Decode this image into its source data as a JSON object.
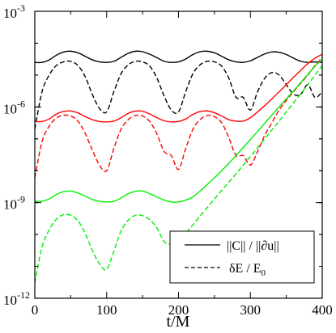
{
  "chart_data": {
    "type": "line",
    "xlabel": "t/M",
    "ylabel": "",
    "xlim": [
      0,
      400
    ],
    "ylim": [
      1e-12,
      0.001
    ],
    "yscale": "log",
    "x_ticks": [
      0,
      100,
      200,
      300,
      400
    ],
    "x_tick_labels": [
      "0",
      "100",
      "200",
      "300",
      "400"
    ],
    "y_ticks": [
      1e-12,
      1e-09,
      1e-06,
      0.001
    ],
    "y_tick_labels": [
      {
        "base": "10",
        "exp": "-12"
      },
      {
        "base": "10",
        "exp": "-9"
      },
      {
        "base": "10",
        "exp": "-6"
      },
      {
        "base": "10",
        "exp": "-3"
      }
    ],
    "grid": false,
    "legend_position": "bottom-right",
    "legend": [
      {
        "style": "solid",
        "label": "||C|| / ||∂u||"
      },
      {
        "style": "dashed",
        "label": "δE / E",
        "subscript": "0"
      }
    ],
    "series": [
      {
        "color": "#000000",
        "style": "solid",
        "x": [
          0,
          10,
          20,
          30,
          40,
          50,
          60,
          70,
          80,
          90,
          100,
          110,
          120,
          130,
          140,
          150,
          160,
          170,
          180,
          190,
          200,
          210,
          220,
          230,
          240,
          250,
          260,
          270,
          280,
          290,
          300,
          310,
          320,
          330,
          340,
          350,
          360,
          370,
          380,
          390,
          400
        ],
        "y": [
          2.5e-05,
          2.5e-05,
          3e-05,
          4.2e-05,
          5.3e-05,
          5.6e-05,
          5e-05,
          3.9e-05,
          3e-05,
          2.6e-05,
          2.5e-05,
          2.7e-05,
          3.6e-05,
          4.8e-05,
          5.6e-05,
          5.4e-05,
          4.5e-05,
          3.5e-05,
          2.7e-05,
          2.5e-05,
          2.6e-05,
          3.2e-05,
          4.4e-05,
          5.4e-05,
          5.6e-05,
          5e-05,
          3.9e-05,
          3e-05,
          2.6e-05,
          2.5e-05,
          2.8e-05,
          3.6e-05,
          4.6e-05,
          5.3e-05,
          5.2e-05,
          4.4e-05,
          3.4e-05,
          2.7e-05,
          2.5e-05,
          2.6e-05,
          2.5e-05
        ]
      },
      {
        "color": "#000000",
        "style": "dashed",
        "x": [
          0,
          10,
          20,
          30,
          40,
          50,
          60,
          70,
          80,
          90,
          100,
          110,
          120,
          130,
          140,
          150,
          160,
          170,
          180,
          190,
          200,
          210,
          220,
          230,
          240,
          250,
          260,
          270,
          280,
          290,
          300,
          310,
          320,
          330,
          340,
          350,
          360,
          370,
          380,
          390,
          400
        ],
        "y": [
          2e-07,
          3e-06,
          1e-05,
          2e-05,
          2.6e-05,
          2.7e-05,
          2e-05,
          9e-06,
          2.5e-06,
          9e-07,
          7e-07,
          3e-06,
          1.1e-05,
          2.1e-05,
          2.7e-05,
          2.6e-05,
          1.9e-05,
          8e-06,
          2.2e-06,
          8e-07,
          7e-07,
          3e-06,
          1.1e-05,
          2.1e-05,
          2.7e-05,
          2.6e-05,
          1.9e-05,
          8e-06,
          2e-06,
          2e-06,
          8e-07,
          3e-06,
          8e-06,
          1.2e-05,
          1e-05,
          5e-06,
          2.5e-06,
          2.5e-06,
          5e-06,
          2e-06,
          3e-06
        ]
      },
      {
        "color": "#ff0000",
        "style": "solid",
        "x": [
          0,
          10,
          20,
          30,
          40,
          50,
          60,
          70,
          80,
          90,
          100,
          110,
          120,
          130,
          140,
          150,
          160,
          170,
          180,
          190,
          200,
          210,
          220,
          230,
          240,
          250,
          260,
          270,
          280,
          290,
          300,
          310,
          320,
          330,
          340,
          350,
          360,
          370,
          380,
          390,
          400
        ],
        "y": [
          3.5e-07,
          3.5e-07,
          4.2e-07,
          6e-07,
          7.2e-07,
          7.5e-07,
          6.5e-07,
          5e-07,
          4e-07,
          3.5e-07,
          3.4e-07,
          3.6e-07,
          4.6e-07,
          6.3e-07,
          7.4e-07,
          7.3e-07,
          6e-07,
          4.6e-07,
          3.7e-07,
          3.4e-07,
          3.5e-07,
          4.2e-07,
          5.8e-07,
          7.2e-07,
          7.5e-07,
          6.6e-07,
          5.2e-07,
          4e-07,
          3.6e-07,
          3.6e-07,
          4.6e-07,
          7e-07,
          1.1e-06,
          1.8e-06,
          3e-06,
          5e-06,
          8.5e-06,
          1.4e-05,
          2.3e-05,
          3.4e-05,
          4.5e-05
        ]
      },
      {
        "color": "#ff0000",
        "style": "dashed",
        "x": [
          0,
          10,
          20,
          30,
          40,
          50,
          60,
          70,
          80,
          90,
          100,
          110,
          120,
          130,
          140,
          150,
          160,
          170,
          180,
          190,
          200,
          210,
          220,
          230,
          240,
          250,
          260,
          270,
          280,
          290,
          300,
          310,
          320,
          330,
          340,
          350,
          360,
          370,
          380,
          390,
          400
        ],
        "y": [
          6e-09,
          8e-08,
          2.5e-07,
          4.5e-07,
          5.5e-07,
          5.2e-07,
          3.6e-07,
          1.5e-07,
          4.5e-08,
          1.5e-08,
          1e-08,
          5e-08,
          2e-07,
          4e-07,
          5.4e-07,
          5.2e-07,
          3.5e-07,
          1.4e-07,
          4e-08,
          3e-08,
          1.1e-08,
          5e-08,
          2e-07,
          4e-07,
          5.4e-07,
          5e-07,
          3.2e-07,
          1.1e-07,
          3e-08,
          3e-08,
          1.5e-08,
          4e-08,
          1.3e-07,
          3.2e-07,
          8e-07,
          1.6e-06,
          3e-06,
          5.5e-06,
          1e-05,
          2e-05,
          3.5e-05
        ]
      },
      {
        "color": "#00ee00",
        "style": "solid",
        "x": [
          0,
          10,
          20,
          30,
          40,
          50,
          60,
          70,
          80,
          90,
          100,
          110,
          120,
          130,
          140,
          150,
          160,
          170,
          180,
          190,
          200,
          210,
          220,
          230,
          240,
          250,
          260,
          270,
          280,
          290,
          300,
          310,
          320,
          330,
          340,
          350,
          360,
          370,
          380,
          390,
          400
        ],
        "y": [
          1.1e-09,
          1.1e-09,
          1.3e-09,
          1.8e-09,
          2.2e-09,
          2.3e-09,
          2e-09,
          1.6e-09,
          1.25e-09,
          1.1e-09,
          1.05e-09,
          1.1e-09,
          1.4e-09,
          1.9e-09,
          2.25e-09,
          2.3e-09,
          1.9e-09,
          1.5e-09,
          1.2e-09,
          1.05e-09,
          1.05e-09,
          1.2e-09,
          1.5e-09,
          2.3e-09,
          3.7e-09,
          6e-09,
          1e-08,
          1.7e-08,
          3e-08,
          5.3e-08,
          9.5e-08,
          1.7e-07,
          3.1e-07,
          5.6e-07,
          1e-06,
          1.8e-06,
          3.2e-06,
          5.8e-06,
          1.05e-05,
          1.9e-05,
          3.2e-05
        ]
      },
      {
        "color": "#00ee00",
        "style": "dashed",
        "x": [
          0,
          10,
          20,
          30,
          40,
          50,
          60,
          70,
          80,
          90,
          100,
          110,
          120,
          130,
          140,
          150,
          160,
          170,
          180,
          190,
          200,
          210,
          220,
          230,
          240,
          250,
          260,
          270,
          280,
          290,
          300,
          310,
          320,
          330,
          340,
          350,
          360,
          370,
          380,
          390,
          400
        ],
        "y": [
          3e-12,
          4e-11,
          1.4e-10,
          3e-10,
          4.2e-10,
          4e-10,
          2.7e-10,
          1.1e-10,
          3.2e-11,
          1.2e-11,
          8e-12,
          3e-11,
          1.3e-10,
          2.8e-10,
          4e-10,
          3.9e-10,
          2.9e-10,
          1.6e-10,
          6e-11,
          5e-11,
          7e-11,
          1.1e-10,
          2e-10,
          3.8e-10,
          7e-10,
          1.3e-09,
          2.4e-09,
          4.4e-09,
          8e-09,
          1.5e-08,
          2.8e-08,
          5.2e-08,
          1e-07,
          1.9e-07,
          3.6e-07,
          7e-07,
          1.35e-06,
          2.6e-06,
          5e-06,
          1e-05,
          2e-05
        ]
      }
    ]
  }
}
